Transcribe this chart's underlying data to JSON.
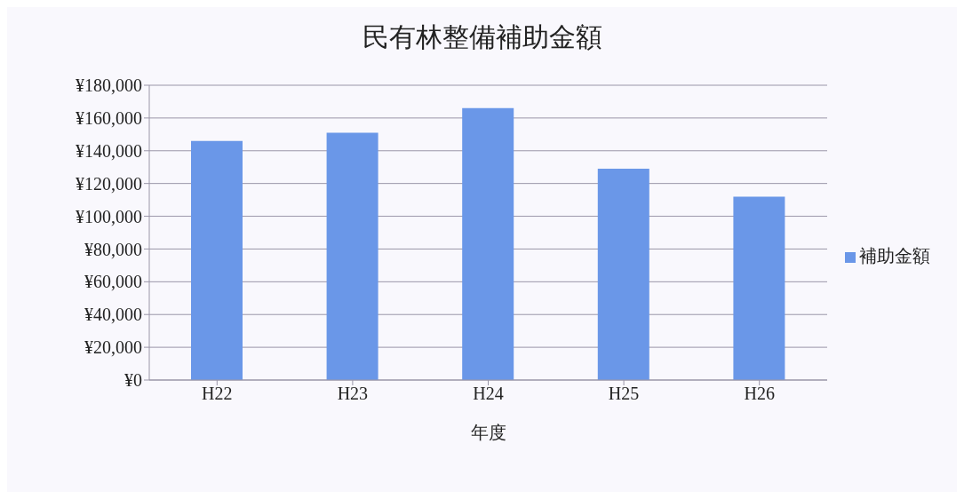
{
  "chart_data": {
    "type": "bar",
    "title": "民有林整備補助金額",
    "xlabel": "年度",
    "categories": [
      "H22",
      "H23",
      "H24",
      "H25",
      "H26"
    ],
    "series": [
      {
        "name": "補助金額",
        "color": "#6a97e8",
        "values": [
          146000,
          151000,
          166000,
          129000,
          112000
        ]
      }
    ],
    "ylim": [
      0,
      180000
    ],
    "yticks": [
      {
        "value": 0,
        "label": "¥0"
      },
      {
        "value": 20000,
        "label": "¥20,000"
      },
      {
        "value": 40000,
        "label": "¥40,000"
      },
      {
        "value": 60000,
        "label": "¥60,000"
      },
      {
        "value": 80000,
        "label": "¥80,000"
      },
      {
        "value": 100000,
        "label": "¥100,000"
      },
      {
        "value": 120000,
        "label": "¥120,000"
      },
      {
        "value": 140000,
        "label": "¥140,000"
      },
      {
        "value": 160000,
        "label": "¥160,000"
      },
      {
        "value": 180000,
        "label": "¥180,000"
      }
    ],
    "grid": "y",
    "legend": "right"
  }
}
